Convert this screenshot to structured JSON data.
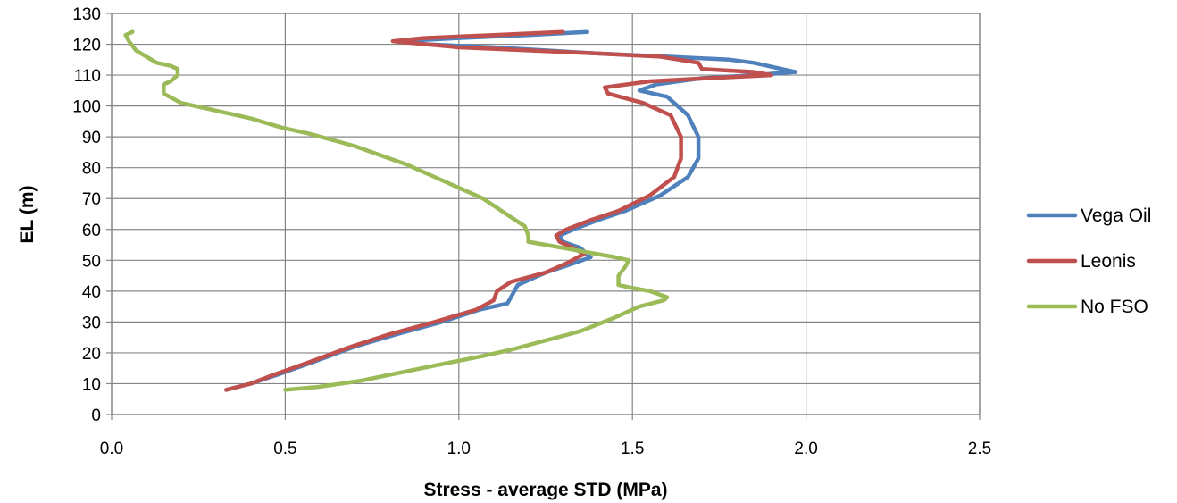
{
  "chart_data": {
    "type": "line",
    "title": "",
    "xlabel": "Stress - average STD (MPa)",
    "ylabel": "EL (m)",
    "xlim": [
      0.0,
      2.5
    ],
    "ylim": [
      0,
      130
    ],
    "x_ticks": [
      "0.0",
      "0.5",
      "1.0",
      "1.5",
      "2.0",
      "2.5"
    ],
    "y_ticks": [
      "0",
      "10",
      "20",
      "30",
      "40",
      "50",
      "60",
      "70",
      "80",
      "90",
      "100",
      "110",
      "120",
      "130"
    ],
    "grid": true,
    "legend_position": "right",
    "series": [
      {
        "name": "Vega Oil",
        "color": "#4f81bd",
        "points": [
          [
            0.33,
            8
          ],
          [
            0.4,
            10
          ],
          [
            0.48,
            13
          ],
          [
            0.58,
            17
          ],
          [
            0.7,
            22
          ],
          [
            0.82,
            26
          ],
          [
            0.95,
            30
          ],
          [
            1.06,
            34
          ],
          [
            1.14,
            36
          ],
          [
            1.15,
            38
          ],
          [
            1.17,
            42
          ],
          [
            1.25,
            46
          ],
          [
            1.33,
            49
          ],
          [
            1.38,
            51
          ],
          [
            1.35,
            54
          ],
          [
            1.3,
            56
          ],
          [
            1.29,
            58
          ],
          [
            1.33,
            60
          ],
          [
            1.4,
            63
          ],
          [
            1.48,
            66
          ],
          [
            1.58,
            71
          ],
          [
            1.66,
            77
          ],
          [
            1.69,
            83
          ],
          [
            1.69,
            90
          ],
          [
            1.66,
            97
          ],
          [
            1.6,
            103
          ],
          [
            1.52,
            105
          ],
          [
            1.57,
            107
          ],
          [
            1.7,
            109
          ],
          [
            1.85,
            110
          ],
          [
            1.97,
            111
          ],
          [
            1.85,
            114
          ],
          [
            1.78,
            115
          ],
          [
            1.6,
            116
          ],
          [
            1.4,
            117
          ],
          [
            1.25,
            118
          ],
          [
            1.1,
            119
          ],
          [
            0.9,
            120
          ],
          [
            0.83,
            121
          ],
          [
            1.0,
            122
          ],
          [
            1.2,
            123
          ],
          [
            1.37,
            124
          ]
        ]
      },
      {
        "name": "Leonis",
        "color": "#c0504d",
        "points": [
          [
            0.33,
            8
          ],
          [
            0.4,
            10
          ],
          [
            0.47,
            13
          ],
          [
            0.57,
            17
          ],
          [
            0.69,
            22
          ],
          [
            0.8,
            26
          ],
          [
            0.93,
            30
          ],
          [
            1.05,
            34
          ],
          [
            1.1,
            37
          ],
          [
            1.11,
            40
          ],
          [
            1.15,
            43
          ],
          [
            1.25,
            46
          ],
          [
            1.31,
            49
          ],
          [
            1.36,
            52
          ],
          [
            1.33,
            54
          ],
          [
            1.29,
            56
          ],
          [
            1.28,
            58
          ],
          [
            1.31,
            60
          ],
          [
            1.38,
            63
          ],
          [
            1.46,
            66
          ],
          [
            1.55,
            71
          ],
          [
            1.62,
            77
          ],
          [
            1.64,
            83
          ],
          [
            1.64,
            90
          ],
          [
            1.61,
            97
          ],
          [
            1.53,
            101
          ],
          [
            1.43,
            104
          ],
          [
            1.42,
            106
          ],
          [
            1.55,
            108
          ],
          [
            1.72,
            109
          ],
          [
            1.9,
            110
          ],
          [
            1.85,
            111
          ],
          [
            1.7,
            112
          ],
          [
            1.69,
            114
          ],
          [
            1.58,
            116
          ],
          [
            1.4,
            117
          ],
          [
            1.2,
            118
          ],
          [
            1.0,
            119
          ],
          [
            0.81,
            121
          ],
          [
            0.9,
            122
          ],
          [
            1.1,
            123
          ],
          [
            1.3,
            124
          ]
        ]
      },
      {
        "name": "No FSO",
        "color": "#9bbb59",
        "points": [
          [
            0.5,
            8
          ],
          [
            0.6,
            9
          ],
          [
            0.72,
            11
          ],
          [
            0.85,
            14
          ],
          [
            0.98,
            17
          ],
          [
            1.07,
            19
          ],
          [
            1.15,
            21
          ],
          [
            1.25,
            24
          ],
          [
            1.35,
            27
          ],
          [
            1.44,
            31
          ],
          [
            1.52,
            35
          ],
          [
            1.59,
            37
          ],
          [
            1.6,
            38
          ],
          [
            1.55,
            40
          ],
          [
            1.5,
            41
          ],
          [
            1.46,
            42
          ],
          [
            1.46,
            45
          ],
          [
            1.48,
            48
          ],
          [
            1.49,
            50
          ],
          [
            1.45,
            51
          ],
          [
            1.4,
            52
          ],
          [
            1.3,
            54
          ],
          [
            1.2,
            56
          ],
          [
            1.2,
            58
          ],
          [
            1.19,
            61
          ],
          [
            1.15,
            64
          ],
          [
            1.07,
            70
          ],
          [
            0.97,
            75
          ],
          [
            0.85,
            81
          ],
          [
            0.7,
            87
          ],
          [
            0.57,
            91
          ],
          [
            0.49,
            93
          ],
          [
            0.4,
            96
          ],
          [
            0.28,
            99
          ],
          [
            0.2,
            101
          ],
          [
            0.15,
            104
          ],
          [
            0.15,
            107
          ],
          [
            0.17,
            108
          ],
          [
            0.19,
            110
          ],
          [
            0.19,
            112
          ],
          [
            0.17,
            113
          ],
          [
            0.13,
            114
          ],
          [
            0.1,
            116
          ],
          [
            0.07,
            118
          ],
          [
            0.05,
            121
          ],
          [
            0.04,
            123
          ],
          [
            0.06,
            124
          ]
        ]
      }
    ]
  }
}
